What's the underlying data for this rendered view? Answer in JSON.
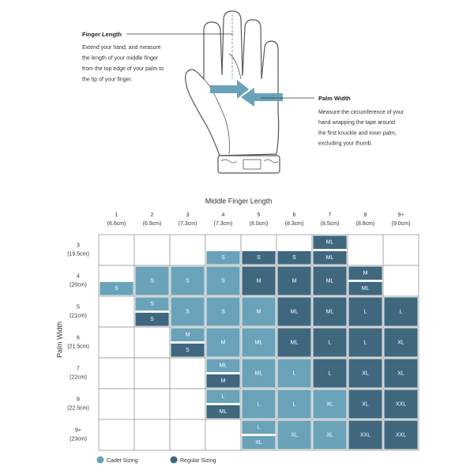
{
  "guide": {
    "finger": {
      "title": "Finger Length",
      "lines": [
        "Extend your hand, and measure",
        "the length of your middle finger",
        "from the top edge of your palm to",
        "the tip of your finger."
      ]
    },
    "palm": {
      "title": "Palm Width",
      "lines": [
        "Measure the circumference of your",
        "hand wrapping the tape around",
        "the first knuckle and inner palm,",
        "excluding your thumb."
      ]
    }
  },
  "table": {
    "col_title": "Middle Finger Length",
    "row_title": "Palm Width",
    "columns": [
      [
        "1",
        "(6.6cm)"
      ],
      [
        "2",
        "(6.9cm)"
      ],
      [
        "3",
        "(7.3cm)"
      ],
      [
        "4",
        "(7.3cm)"
      ],
      [
        "5",
        "(8.0cm)"
      ],
      [
        "6",
        "(8.3cm)"
      ],
      [
        "7",
        "(8.5cm)"
      ],
      [
        "8",
        "(8.8cm)"
      ],
      [
        "9+",
        "(9.0cm)"
      ]
    ],
    "rows": [
      {
        "label": [
          "3",
          "(19.5cm)"
        ],
        "cells": [
          [],
          [],
          [],
          [
            {
              "text": "S",
              "kind": "cadet",
              "half": "bottom"
            }
          ],
          [
            {
              "text": "S",
              "kind": "regular",
              "half": "bottom"
            }
          ],
          [
            {
              "text": "S",
              "kind": "regular",
              "half": "bottom"
            }
          ],
          [
            {
              "text": "ML",
              "kind": "regular",
              "half": "top"
            },
            {
              "text": "ML",
              "kind": "regular",
              "half": "bottom"
            }
          ],
          [],
          []
        ]
      },
      {
        "label": [
          "4",
          "(20cm)"
        ],
        "cells": [
          [
            {
              "text": "S",
              "kind": "cadet",
              "half": "bottom"
            }
          ],
          [
            {
              "text": "S",
              "kind": "cadet",
              "half": "full"
            }
          ],
          [
            {
              "text": "S",
              "kind": "cadet",
              "half": "full"
            }
          ],
          [
            {
              "text": "S",
              "kind": "cadet",
              "half": "full"
            }
          ],
          [
            {
              "text": "M",
              "kind": "regular",
              "half": "full"
            }
          ],
          [
            {
              "text": "M",
              "kind": "regular",
              "half": "full"
            }
          ],
          [
            {
              "text": "ML",
              "kind": "regular",
              "half": "full"
            }
          ],
          [
            {
              "text": "M",
              "kind": "regular",
              "half": "top"
            },
            {
              "text": "ML",
              "kind": "regular",
              "half": "bottom"
            }
          ],
          []
        ]
      },
      {
        "label": [
          "5",
          "(21cm)"
        ],
        "cells": [
          [],
          [
            {
              "text": "S",
              "kind": "cadet",
              "half": "top"
            },
            {
              "text": "S",
              "kind": "regular",
              "half": "bottom"
            }
          ],
          [
            {
              "text": "S",
              "kind": "cadet",
              "half": "full"
            }
          ],
          [
            {
              "text": "S",
              "kind": "cadet",
              "half": "full"
            }
          ],
          [
            {
              "text": "M",
              "kind": "cadet",
              "half": "full"
            }
          ],
          [
            {
              "text": "ML",
              "kind": "regular",
              "half": "full"
            }
          ],
          [
            {
              "text": "ML",
              "kind": "regular",
              "half": "full"
            }
          ],
          [
            {
              "text": "L",
              "kind": "regular",
              "half": "full"
            }
          ],
          [
            {
              "text": "L",
              "kind": "regular",
              "half": "full"
            }
          ]
        ]
      },
      {
        "label": [
          "6",
          "(21.5cm)"
        ],
        "cells": [
          [],
          [],
          [
            {
              "text": "M",
              "kind": "cadet",
              "half": "top"
            },
            {
              "text": "S",
              "kind": "regular",
              "half": "bottom"
            }
          ],
          [
            {
              "text": "M",
              "kind": "cadet",
              "half": "full"
            }
          ],
          [
            {
              "text": "ML",
              "kind": "cadet",
              "half": "full"
            }
          ],
          [
            {
              "text": "ML",
              "kind": "regular",
              "half": "full"
            }
          ],
          [
            {
              "text": "L",
              "kind": "regular",
              "half": "full"
            }
          ],
          [
            {
              "text": "L",
              "kind": "regular",
              "half": "full"
            }
          ],
          [
            {
              "text": "XL",
              "kind": "regular",
              "half": "full"
            }
          ]
        ]
      },
      {
        "label": [
          "7",
          "(22cm)"
        ],
        "cells": [
          [],
          [],
          [],
          [
            {
              "text": "ML",
              "kind": "cadet",
              "half": "top"
            },
            {
              "text": "M",
              "kind": "regular",
              "half": "bottom"
            }
          ],
          [
            {
              "text": "ML",
              "kind": "cadet",
              "half": "full"
            }
          ],
          [
            {
              "text": "L",
              "kind": "cadet",
              "half": "full"
            }
          ],
          [
            {
              "text": "L",
              "kind": "regular",
              "half": "full"
            }
          ],
          [
            {
              "text": "XL",
              "kind": "regular",
              "half": "full"
            }
          ],
          [
            {
              "text": "XL",
              "kind": "regular",
              "half": "full"
            }
          ]
        ]
      },
      {
        "label": [
          "8",
          "(22.5cm)"
        ],
        "cells": [
          [],
          [],
          [],
          [
            {
              "text": "L",
              "kind": "cadet",
              "half": "top"
            },
            {
              "text": "ML",
              "kind": "regular",
              "half": "bottom"
            }
          ],
          [
            {
              "text": "L",
              "kind": "cadet",
              "half": "full"
            }
          ],
          [
            {
              "text": "L",
              "kind": "cadet",
              "half": "full"
            }
          ],
          [
            {
              "text": "XL",
              "kind": "cadet",
              "half": "full"
            }
          ],
          [
            {
              "text": "XL",
              "kind": "regular",
              "half": "full"
            }
          ],
          [
            {
              "text": "XXL",
              "kind": "regular",
              "half": "full"
            }
          ]
        ]
      },
      {
        "label": [
          "9+",
          "(23cm)"
        ],
        "cells": [
          [],
          [],
          [],
          [],
          [
            {
              "text": "L",
              "kind": "cadet",
              "half": "top"
            },
            {
              "text": "XL",
              "kind": "cadet",
              "half": "bottom"
            }
          ],
          [
            {
              "text": "XL",
              "kind": "cadet",
              "half": "full"
            }
          ],
          [
            {
              "text": "XL",
              "kind": "cadet",
              "half": "full"
            }
          ],
          [
            {
              "text": "XXL",
              "kind": "regular",
              "half": "full"
            }
          ],
          [
            {
              "text": "XXL",
              "kind": "regular",
              "half": "full"
            }
          ]
        ]
      }
    ],
    "legend": {
      "cadet": {
        "label": "Cadet Sizing",
        "color": "#6aa3b9"
      },
      "regular": {
        "label": "Regular Sizing",
        "color": "#3f687f"
      }
    }
  }
}
